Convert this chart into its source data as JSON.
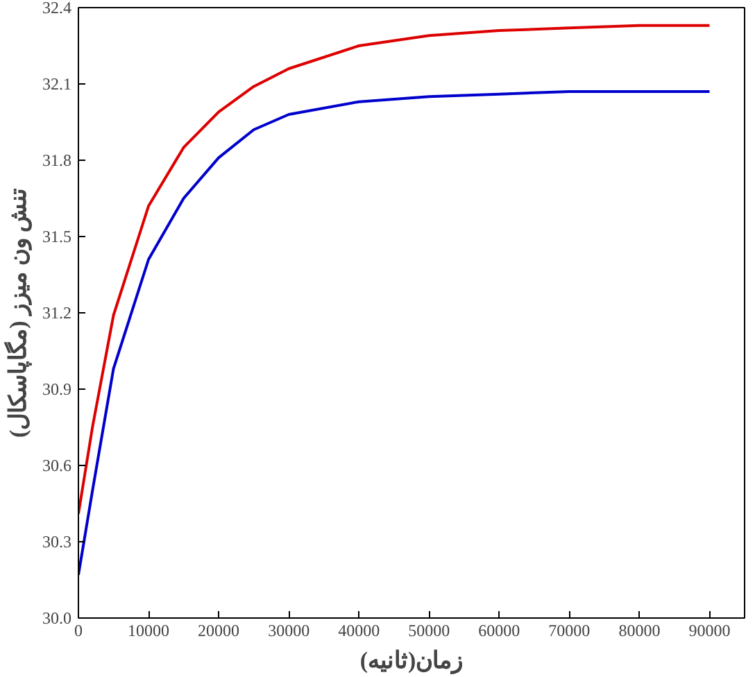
{
  "chart_data": {
    "type": "line",
    "xlabel": "زمان(ثانیه)",
    "ylabel": "تنش ون میزز (مگاپاسکال)",
    "xlim": [
      0,
      95000
    ],
    "ylim": [
      30.0,
      32.4
    ],
    "xticks": [
      0,
      10000,
      20000,
      30000,
      40000,
      50000,
      60000,
      70000,
      80000,
      90000
    ],
    "yticks": [
      {
        "value": 30.0,
        "label": "30.0"
      },
      {
        "value": 30.3,
        "label": "30.3"
      },
      {
        "value": 30.6,
        "label": "30.6"
      },
      {
        "value": 30.9,
        "label": "30.9"
      },
      {
        "value": 31.2,
        "label": "31.2"
      },
      {
        "value": 31.5,
        "label": "31.5"
      },
      {
        "value": 31.8,
        "label": "31.8"
      },
      {
        "value": 32.1,
        "label": "32.1"
      },
      {
        "value": 32.4,
        "label": "32.4"
      }
    ],
    "x": [
      0,
      2000,
      5000,
      10000,
      15000,
      20000,
      25000,
      30000,
      40000,
      50000,
      60000,
      70000,
      80000,
      90000
    ],
    "series": [
      {
        "color": "#dd0000",
        "values": [
          30.41,
          30.75,
          31.19,
          31.62,
          31.85,
          31.99,
          32.09,
          32.16,
          32.25,
          32.29,
          32.31,
          32.32,
          32.33,
          32.33
        ]
      },
      {
        "color": "#0000cc",
        "values": [
          30.17,
          30.5,
          30.98,
          31.41,
          31.65,
          31.81,
          31.92,
          31.98,
          32.03,
          32.05,
          32.06,
          32.07,
          32.07,
          32.07
        ]
      }
    ],
    "line_style": "solid"
  }
}
